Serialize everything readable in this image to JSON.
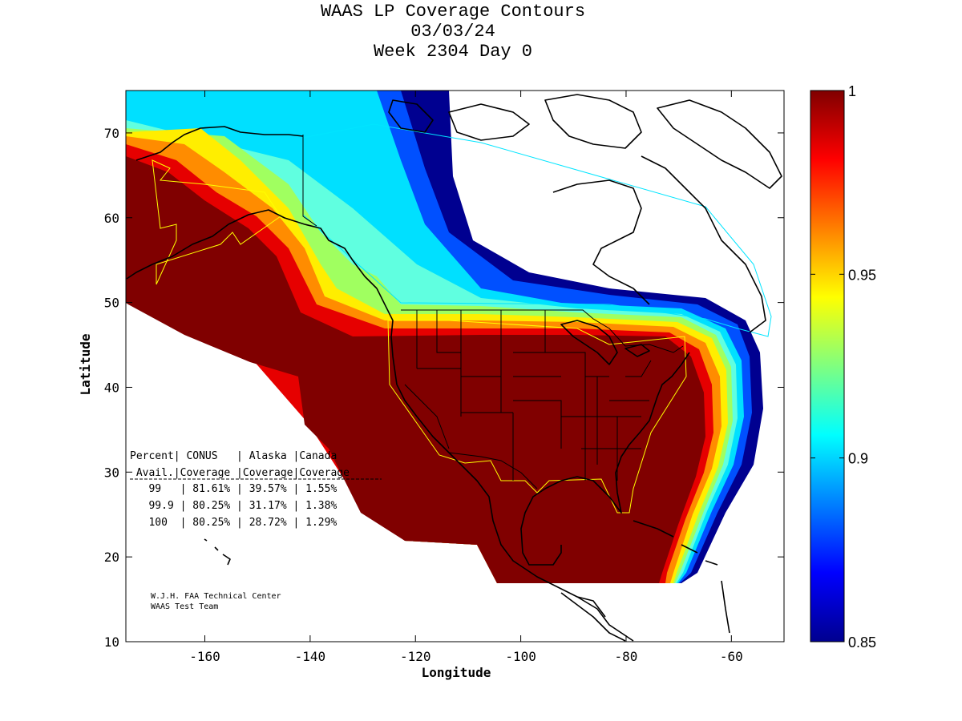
{
  "title": {
    "line1": "WAAS LP Coverage Contours",
    "line2": "03/03/24",
    "line3": "Week 2304 Day 0"
  },
  "axes": {
    "xlabel": "Longitude",
    "ylabel": "Latitude",
    "xlim": [
      -175,
      -50
    ],
    "ylim": [
      10,
      75
    ],
    "x_ticks": [
      -160,
      -140,
      -120,
      -100,
      -80,
      -60
    ],
    "y_ticks": [
      10,
      20,
      30,
      40,
      50,
      60,
      70
    ]
  },
  "colorbar": {
    "min": 0.85,
    "max": 1,
    "ticks": [
      "1",
      "0.95",
      "0.9",
      "0.85"
    ],
    "tick_values": [
      1,
      0.95,
      0.9,
      0.85
    ],
    "colormap": "jet"
  },
  "table": {
    "header1": "Percent| CONUS   | Alaska |Canada",
    "header2": " Avail.|Coverage |Coverage|Coverage",
    "rows": [
      "   99   | 81.61% | 39.57% | 1.55%",
      "   99.9 | 80.25% | 31.17% | 1.38%",
      "   100  | 80.25% | 28.72% | 1.29%"
    ]
  },
  "credit": {
    "line1": "W.J.H. FAA Technical Center",
    "line2": "WAAS Test Team"
  },
  "colors": {
    "dark_red": "#800000",
    "red": "#e60000",
    "orange": "#ff8000",
    "yellow": "#ffff00",
    "cyan": "#00e5ff",
    "blue": "#0040ff",
    "dark_blue": "#000090"
  }
}
